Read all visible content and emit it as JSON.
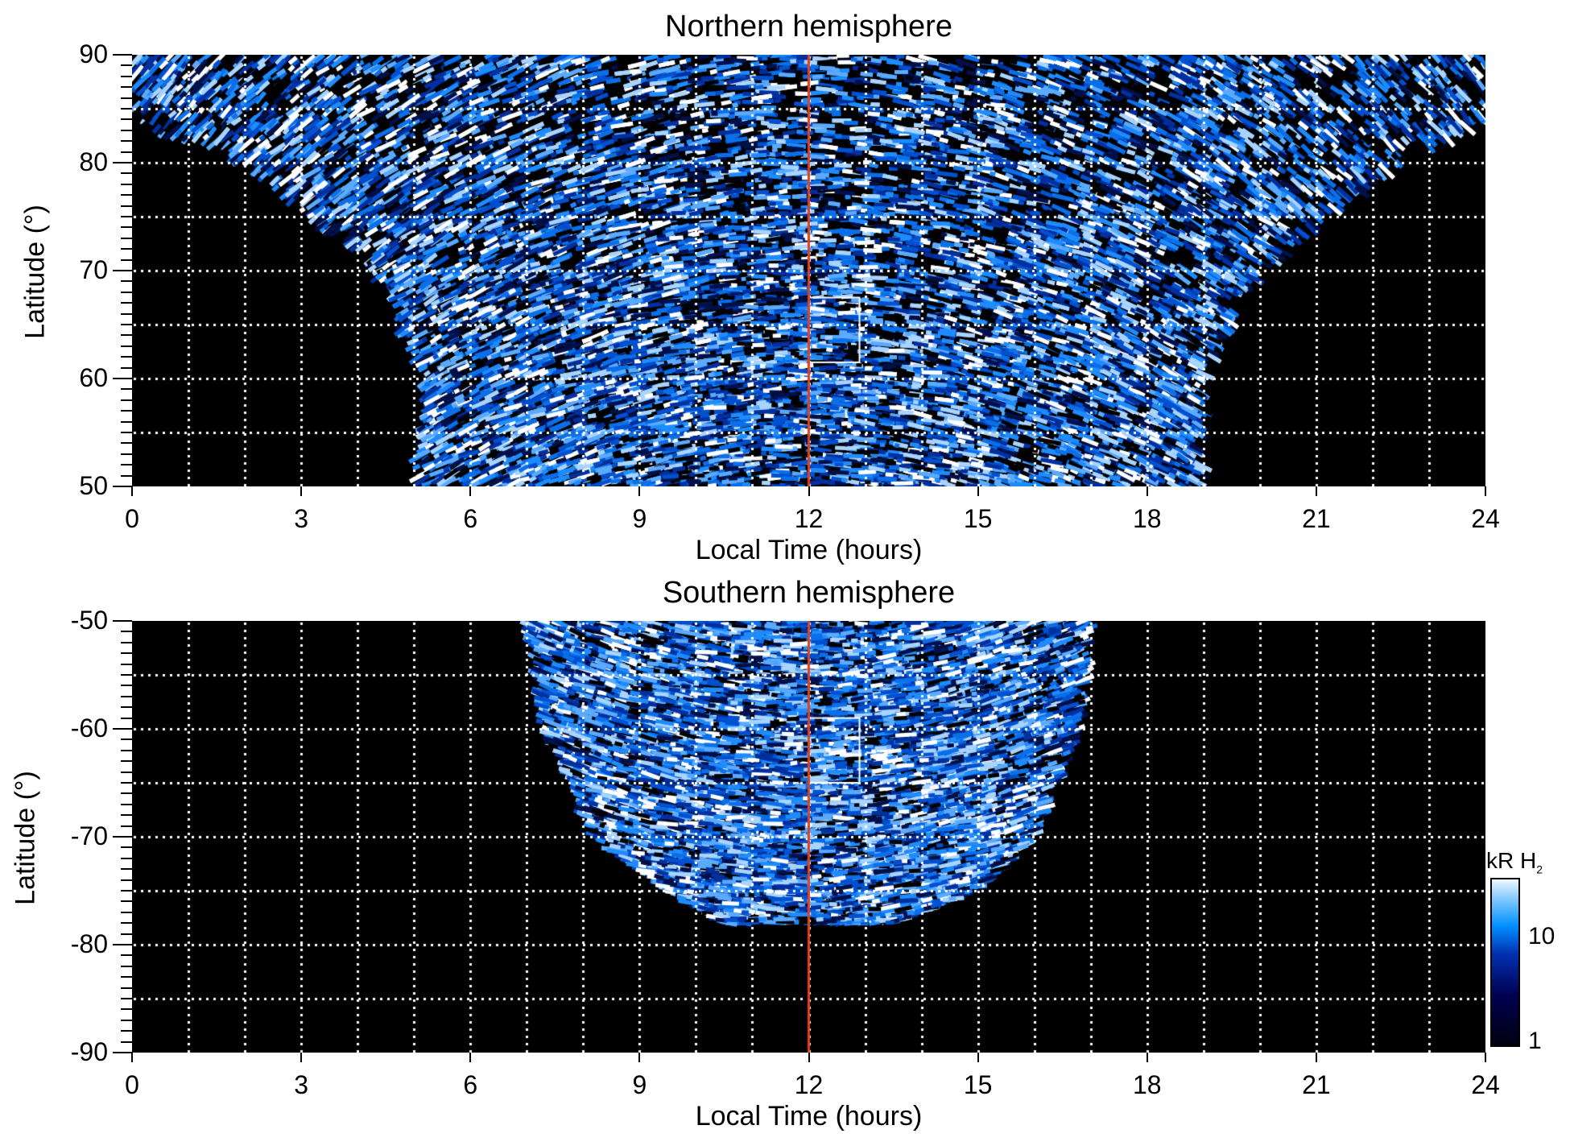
{
  "chart_data": [
    {
      "type": "heatmap",
      "title": "Northern hemisphere",
      "xlabel": "Local Time (hours)",
      "ylabel": "Latitude (°)",
      "xlim": [
        0,
        24
      ],
      "ylim": [
        50,
        90
      ],
      "xticks": [
        0,
        3,
        6,
        9,
        12,
        15,
        18,
        21,
        24
      ],
      "yticks": [
        50,
        60,
        70,
        80,
        90
      ],
      "grid": true,
      "grid_x_step": 1,
      "grid_y_step": 5,
      "emission_region": {
        "lat": [
          50,
          60,
          70,
          80,
          84,
          90
        ],
        "lt_start": [
          5,
          5.2,
          4.3,
          2,
          0,
          0
        ],
        "lt_end": [
          19,
          19,
          20,
          22.5,
          24,
          24
        ]
      },
      "noon_line_lt": 12,
      "box": {
        "lt": [
          12,
          12.9
        ],
        "lat": [
          61.5,
          67.5
        ]
      }
    },
    {
      "type": "heatmap",
      "title": "Southern hemisphere",
      "xlabel": "Local Time (hours)",
      "ylabel": "Latitude (°)",
      "xlim": [
        0,
        24
      ],
      "ylim": [
        -90,
        -50
      ],
      "xticks": [
        0,
        3,
        6,
        9,
        12,
        15,
        18,
        21,
        24
      ],
      "yticks": [
        -90,
        -80,
        -70,
        -60,
        -50
      ],
      "grid": true,
      "grid_x_step": 1,
      "grid_y_step": 5,
      "emission_region": {
        "lat": [
          -50,
          -60,
          -70,
          -75,
          -78
        ],
        "lt_start": [
          7,
          7.3,
          8.2,
          9.5,
          10.5
        ],
        "lt_end": [
          17,
          16.8,
          16,
          15,
          13.5
        ]
      },
      "noon_line_lt": 12,
      "box": {
        "lt": [
          12,
          12.9
        ],
        "lat": [
          -65,
          -59
        ]
      }
    }
  ],
  "colorbar": {
    "label": "kR H",
    "label_sub": "2",
    "ticks": [
      "1",
      "10"
    ],
    "scale": "log",
    "colors": [
      "#000010",
      "#000050",
      "#0030b0",
      "#0090ff",
      "#80c8ff",
      "#f0f8ff"
    ]
  },
  "colors": {
    "noon_line": "#e0401a",
    "box": "#ffffff",
    "grid": "#ffffff"
  }
}
